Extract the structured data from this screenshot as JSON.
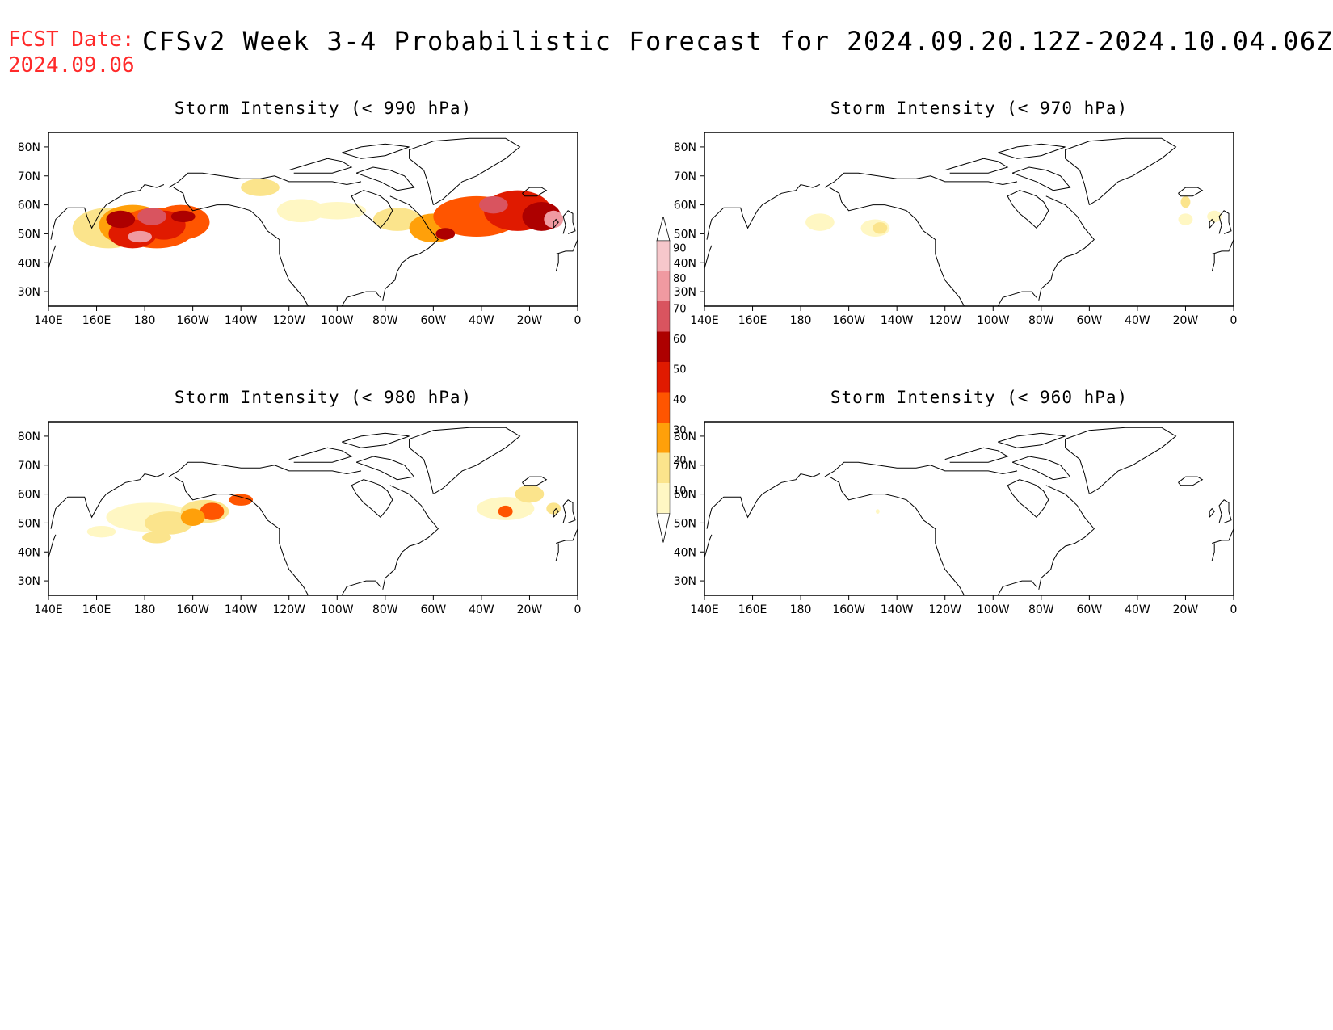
{
  "header": {
    "fcst_label": "FCST Date:",
    "fcst_date": "2024.09.06",
    "title": "CFSv2 Week 3-4 Probabilistic Forecast for 2024.09.20.12Z-2024.10.04.06Z"
  },
  "axes": {
    "lon_labels": [
      "140E",
      "160E",
      "180",
      "160W",
      "140W",
      "120W",
      "100W",
      "80W",
      "60W",
      "40W",
      "20W",
      "0"
    ],
    "lat_labels": [
      "80N",
      "70N",
      "60N",
      "50N",
      "40N",
      "30N"
    ]
  },
  "panels": [
    {
      "id": "p990",
      "title": "Storm Intensity (< 990 hPa)",
      "level": "high"
    },
    {
      "id": "p970",
      "title": "Storm Intensity (< 970 hPa)",
      "level": "low"
    },
    {
      "id": "p980",
      "title": "Storm Intensity (< 980 hPa)",
      "level": "medium"
    },
    {
      "id": "p960",
      "title": "Storm Intensity (< 960 hPa)",
      "level": "none"
    }
  ],
  "colorbar": {
    "labels": [
      "90",
      "80",
      "70",
      "60",
      "50",
      "40",
      "30",
      "20",
      "10"
    ],
    "colors": [
      "#ffffff",
      "#f6c7cb",
      "#f09aa1",
      "#d9545f",
      "#ad0000",
      "#e01a00",
      "#ff5500",
      "#ffa00a",
      "#fbe48c",
      "#fff7c3"
    ]
  }
}
